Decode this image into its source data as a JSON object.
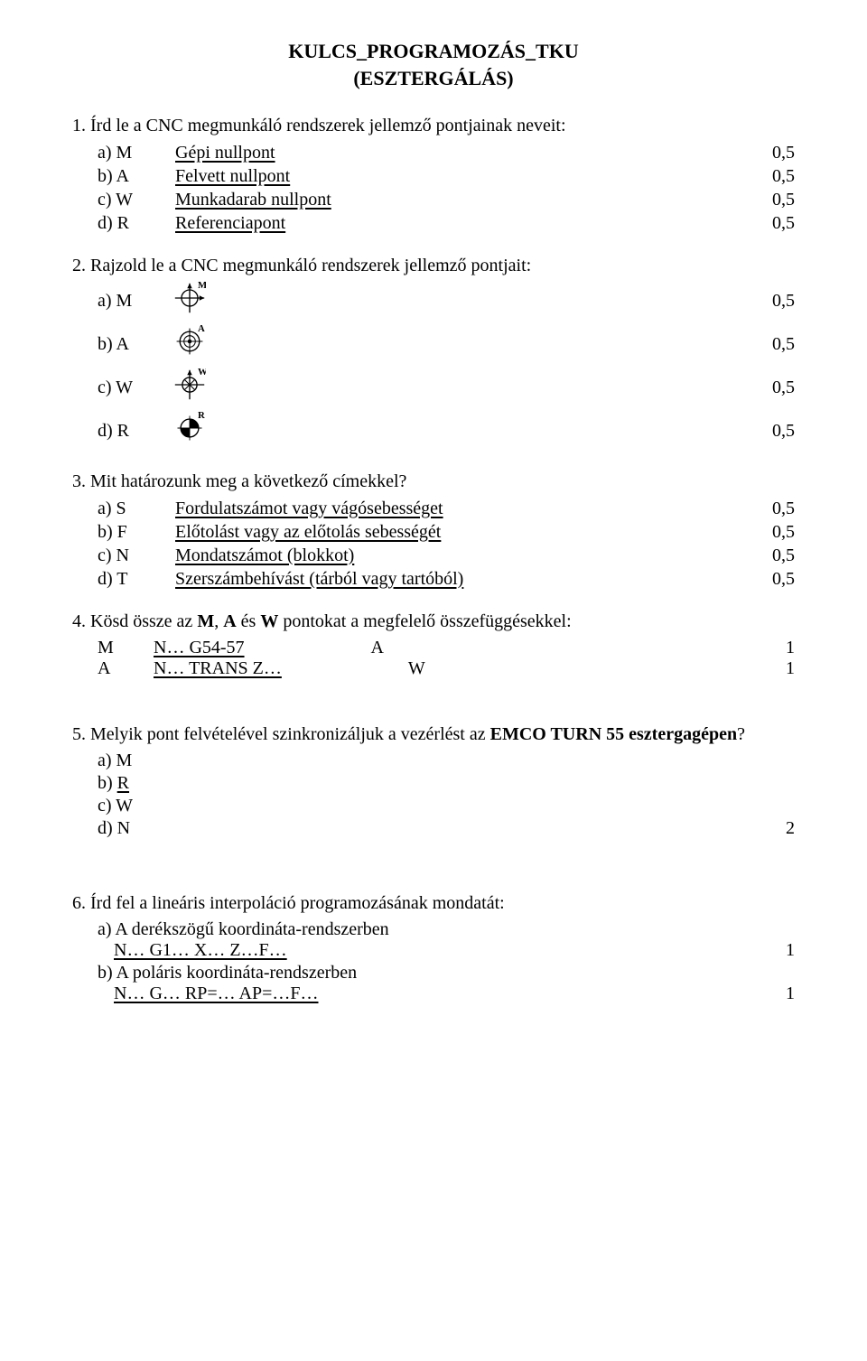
{
  "title": {
    "line1": "KULCS_PROGRAMOZÁS_TKU",
    "line2": "(ESZTERGÁLÁS)"
  },
  "q1": {
    "text": "Írd le a CNC megmunkáló rendszerek jellemző pontjainak neveit:",
    "items": [
      {
        "label": "a) M",
        "answer": "Gépi nullpont",
        "score": "0,5"
      },
      {
        "label": "b) A",
        "answer": "Felvett nullpont",
        "score": "0,5"
      },
      {
        "label": "c) W",
        "answer": "Munkadarab nullpont",
        "score": "0,5"
      },
      {
        "label": "d) R",
        "answer": "Referenciapont",
        "score": "0,5"
      }
    ]
  },
  "q2": {
    "text": "Rajzold le a CNC megmunkáló rendszerek jellemző pontjait:",
    "items": [
      {
        "label": "a) M",
        "iconLetter": "M",
        "iconType": "M",
        "score": "0,5"
      },
      {
        "label": "b) A",
        "iconLetter": "A",
        "iconType": "A",
        "score": "0,5"
      },
      {
        "label": "c) W",
        "iconLetter": "W",
        "iconType": "W",
        "score": "0,5"
      },
      {
        "label": "d) R",
        "iconLetter": "R",
        "iconType": "R",
        "score": "0,5"
      }
    ]
  },
  "q3": {
    "text": "Mit határozunk meg a következő címekkel?",
    "items": [
      {
        "label": "a) S",
        "answer": "Fordulatszámot vagy vágósebességet",
        "score": "0,5"
      },
      {
        "label": "b) F",
        "answer": "Előtolást vagy az előtolás sebességét",
        "score": "0,5"
      },
      {
        "label": "c) N",
        "answer": "Mondatszámot (blokkot)",
        "score": "0,5"
      },
      {
        "label": "d) T",
        "answer": "Szerszámbehívást (tárból vagy tartóból)",
        "score": "0,5"
      }
    ]
  },
  "q4": {
    "text_pre": "Kösd össze az ",
    "bold1": "M",
    "mid1": ", ",
    "bold2": "A",
    "mid2": " és ",
    "bold3": "W",
    "text_post": " pontokat a megfelelő összefüggésekkel:",
    "rows": [
      {
        "lhs": "M",
        "ans": "N… G54-57",
        "mid": "A",
        "score": "1"
      },
      {
        "lhs": "A",
        "ans": " N… TRANS  Z…",
        "mid": "W",
        "score": "1"
      }
    ]
  },
  "q5": {
    "text_pre": "Melyik pont felvételével szinkronizáljuk a vezérlést az ",
    "bold": "EMCO TURN 55 esztergagépen",
    "text_post": "?",
    "items": [
      {
        "label": "a) M",
        "underline": false
      },
      {
        "label": "b) ",
        "choice": "R",
        "underline": true
      },
      {
        "label": "c) W",
        "underline": false
      },
      {
        "label": "d) N",
        "underline": false
      }
    ],
    "score": "2"
  },
  "q6": {
    "text": "Írd fel a lineáris interpoláció programozásának  mondatát:",
    "subs": [
      {
        "label": "a) A derékszögű koordináta-rendszerben",
        "answer": "N… G1… X… Z…F…",
        "score": "1"
      },
      {
        "label": "b) A poláris koordináta-rendszerben",
        "answer": "N… G… RP=… AP=…F…",
        "score": "1"
      }
    ]
  },
  "numbers": {
    "q1": "1.",
    "q2": "2.",
    "q3": "3.",
    "q4": "4.",
    "q5": "5.",
    "q6": "6."
  },
  "colors": {
    "text": "#000000",
    "background": "#ffffff"
  }
}
